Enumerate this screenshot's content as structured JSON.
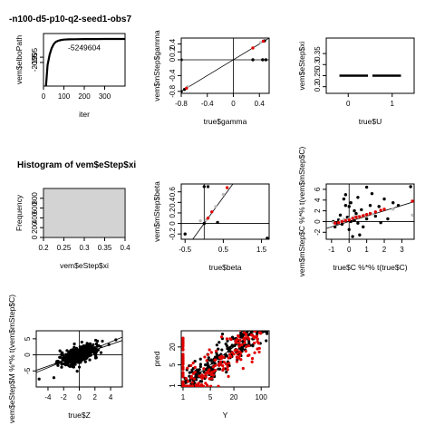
{
  "chart_data": [
    {
      "type": "line",
      "title": "-n100-d5-p10-q2-seed1-obs7",
      "xlabel": "iter",
      "ylabel": "vem$elboPath",
      "xlim": [
        0,
        400
      ],
      "ylim": [
        -2050,
        -1950
      ],
      "xticks": [
        0,
        100,
        200,
        300
      ],
      "yticks": [
        -2005,
        -1995
      ],
      "annotation": "-5249604",
      "annotation_x": 200,
      "annotation_y": -1982,
      "x": [
        10,
        20,
        30,
        40,
        50,
        60,
        70,
        80,
        90,
        100,
        125,
        150,
        200,
        250,
        300,
        350,
        400
      ],
      "y": [
        -2060,
        -2010,
        -1990,
        -1978,
        -1970,
        -1966,
        -1964,
        -1963,
        -1962,
        -1961.5,
        -1961,
        -1960.8,
        -1960.6,
        -1960.5,
        -1960.4,
        -1960.3,
        -1960.3
      ]
    },
    {
      "type": "scatter",
      "title": "",
      "xlabel": "true$gamma",
      "ylabel": "vem$mStep$gamma",
      "xlim": [
        -0.8,
        0.55
      ],
      "ylim": [
        -0.85,
        0.55
      ],
      "xticks": [
        -0.8,
        -0.4,
        0.0,
        0.4
      ],
      "yticks": [
        -0.8,
        -0.4,
        0.0,
        0.2,
        0.4
      ],
      "points_black": [
        [
          -0.8,
          -0.8
        ],
        [
          -0.75,
          -0.75
        ],
        [
          -0.8,
          0.0
        ],
        [
          0.3,
          0.0
        ],
        [
          0.45,
          0.0
        ],
        [
          0.5,
          0.0
        ],
        [
          0.48,
          0.48
        ]
      ],
      "points_red": [
        [
          -0.72,
          -0.72
        ],
        [
          0.3,
          0.3
        ],
        [
          0.46,
          0.47
        ]
      ],
      "points_gray": [
        [
          -0.7,
          -0.68
        ],
        [
          0.42,
          0.44
        ]
      ],
      "hline": 0,
      "vline": 0,
      "abline": [
        0,
        1
      ]
    },
    {
      "type": "scatter",
      "title": "",
      "xlabel": "true$U",
      "ylabel": "vem$eStep$xi",
      "xlim": [
        -0.5,
        1.5
      ],
      "ylim": [
        0.17,
        0.42
      ],
      "xticks": [
        0,
        1
      ],
      "yticks": [
        0.2,
        0.25,
        0.3,
        0.35
      ],
      "segments": [
        [
          -0.2,
          0.25,
          0.45,
          0.25
        ],
        [
          0.55,
          0.25,
          1.2,
          0.25
        ]
      ]
    },
    {
      "type": "bar",
      "title": "Histogram of vem$eStep$xi",
      "xlabel": "vem$eStep$xi",
      "ylabel": "Frequency",
      "xlim": [
        0.2,
        0.4
      ],
      "ylim": [
        0,
        1000
      ],
      "xticks": [
        0.2,
        0.25,
        0.3,
        0.35,
        0.4
      ],
      "yticks": [
        0,
        200,
        400,
        600,
        800
      ],
      "bins": [
        [
          0.2,
          0.4,
          1000
        ]
      ]
    },
    {
      "type": "scatter",
      "title": "",
      "xlabel": "true$beta",
      "ylabel": "vem$mStep$beta",
      "xlim": [
        -0.6,
        1.7
      ],
      "ylim": [
        -0.3,
        0.75
      ],
      "xticks": [
        -0.5,
        0.5,
        1.5
      ],
      "yticks": [
        -0.2,
        0.0,
        0.2,
        0.4,
        0.6
      ],
      "points_black": [
        [
          -0.5,
          -0.2
        ],
        [
          0.0,
          0.7
        ],
        [
          0.1,
          0.7
        ],
        [
          0.35,
          0.02
        ],
        [
          1.65,
          -0.28
        ],
        [
          0.0,
          0.0
        ]
      ],
      "points_red": [
        [
          0.1,
          0.1
        ],
        [
          0.2,
          0.22
        ],
        [
          0.6,
          0.68
        ]
      ],
      "points_gray": [
        [
          -0.1,
          0.05
        ],
        [
          0.05,
          0.07
        ],
        [
          0.3,
          0.32
        ],
        [
          0.5,
          0.55
        ]
      ],
      "hline": 0,
      "vline": 0,
      "abline": [
        0,
        1
      ]
    },
    {
      "type": "scatter",
      "title": "",
      "xlabel": "true$C %*% t(true$C)",
      "ylabel": "vem$mStep$C %*% t(vem$mStep$C)",
      "xlim": [
        -1.3,
        3.7
      ],
      "ylim": [
        -3.3,
        7.0
      ],
      "xticks": [
        -1,
        0,
        1,
        2,
        3
      ],
      "yticks": [
        -2,
        0,
        2,
        4,
        6
      ],
      "points_black": [
        [
          -0.9,
          0.0
        ],
        [
          -0.8,
          -1.0
        ],
        [
          -0.6,
          0.3
        ],
        [
          -0.5,
          1.2
        ],
        [
          -0.4,
          -0.5
        ],
        [
          -0.3,
          4.2
        ],
        [
          -0.2,
          5.0
        ],
        [
          -0.1,
          0.8
        ],
        [
          0.0,
          -1.5
        ],
        [
          0.0,
          2.8
        ],
        [
          0.1,
          0.0
        ],
        [
          0.1,
          3.5
        ],
        [
          0.2,
          -2.8
        ],
        [
          0.3,
          0.2
        ],
        [
          0.4,
          1.5
        ],
        [
          0.5,
          4.5
        ],
        [
          0.5,
          -0.3
        ],
        [
          0.7,
          2.2
        ],
        [
          0.8,
          -1.0
        ],
        [
          1.0,
          6.4
        ],
        [
          1.0,
          0.5
        ],
        [
          1.2,
          3.0
        ],
        [
          1.3,
          5.2
        ],
        [
          1.5,
          1.0
        ],
        [
          1.7,
          2.8
        ],
        [
          2.0,
          4.2
        ],
        [
          2.2,
          0.5
        ],
        [
          2.5,
          3.5
        ],
        [
          2.8,
          3.0
        ],
        [
          3.5,
          6.5
        ],
        [
          -0.7,
          -0.3
        ],
        [
          0.6,
          -2.5
        ],
        [
          1.8,
          -0.2
        ],
        [
          -0.2,
          3.0
        ],
        [
          0.3,
          2.0
        ]
      ],
      "points_red": [
        [
          -0.8,
          -0.3
        ],
        [
          -0.6,
          -0.2
        ],
        [
          -0.4,
          0.0
        ],
        [
          -0.2,
          0.2
        ],
        [
          0.0,
          0.3
        ],
        [
          0.2,
          0.6
        ],
        [
          0.4,
          0.8
        ],
        [
          0.6,
          0.9
        ],
        [
          0.8,
          1.1
        ],
        [
          1.0,
          1.3
        ],
        [
          1.2,
          1.5
        ],
        [
          1.5,
          1.8
        ],
        [
          1.8,
          2.1
        ],
        [
          2.0,
          2.3
        ],
        [
          3.6,
          3.8
        ]
      ],
      "points_gray": [
        [
          -0.9,
          -0.2
        ],
        [
          -0.5,
          0.1
        ],
        [
          -0.3,
          0.4
        ],
        [
          0.0,
          0.5
        ],
        [
          0.3,
          0.9
        ],
        [
          0.5,
          1.0
        ],
        [
          0.9,
          1.2
        ],
        [
          1.3,
          1.4
        ],
        [
          2.5,
          2.3
        ],
        [
          3.6,
          1.2
        ]
      ],
      "hline": 0,
      "vline": 0,
      "abline": [
        0,
        1
      ]
    },
    {
      "type": "scatter",
      "title": "",
      "xlabel": "true$Z",
      "ylabel": "vem$eStep$M %*% t(vem$mStep$C)",
      "xlim": [
        -5.5,
        5.5
      ],
      "ylim": [
        -10,
        7.5
      ],
      "xticks": [
        -4,
        -2,
        0,
        2,
        4
      ],
      "yticks": [
        -5,
        0,
        5
      ],
      "points_black": [],
      "cloud_n": 500,
      "cloud_sd_x": 1.2,
      "cloud_slope": 0.9,
      "cloud_sd_y": 2.0,
      "hline": 0,
      "vline": 0,
      "abline": [
        0,
        1
      ]
    },
    {
      "type": "scatter",
      "title": "",
      "xlabel": "Y",
      "ylabel": "pred",
      "xlog": true,
      "ylog": true,
      "xlim": [
        0.9,
        160
      ],
      "ylim": [
        0.9,
        70
      ],
      "xticks": [
        1,
        5,
        20,
        100
      ],
      "xtick_labels": [
        "1",
        "5",
        "20",
        "100"
      ],
      "yticks": [
        1,
        5,
        20
      ],
      "ytick_labels": [
        "1",
        "5",
        "20"
      ],
      "abline": [
        0,
        1
      ]
    }
  ]
}
